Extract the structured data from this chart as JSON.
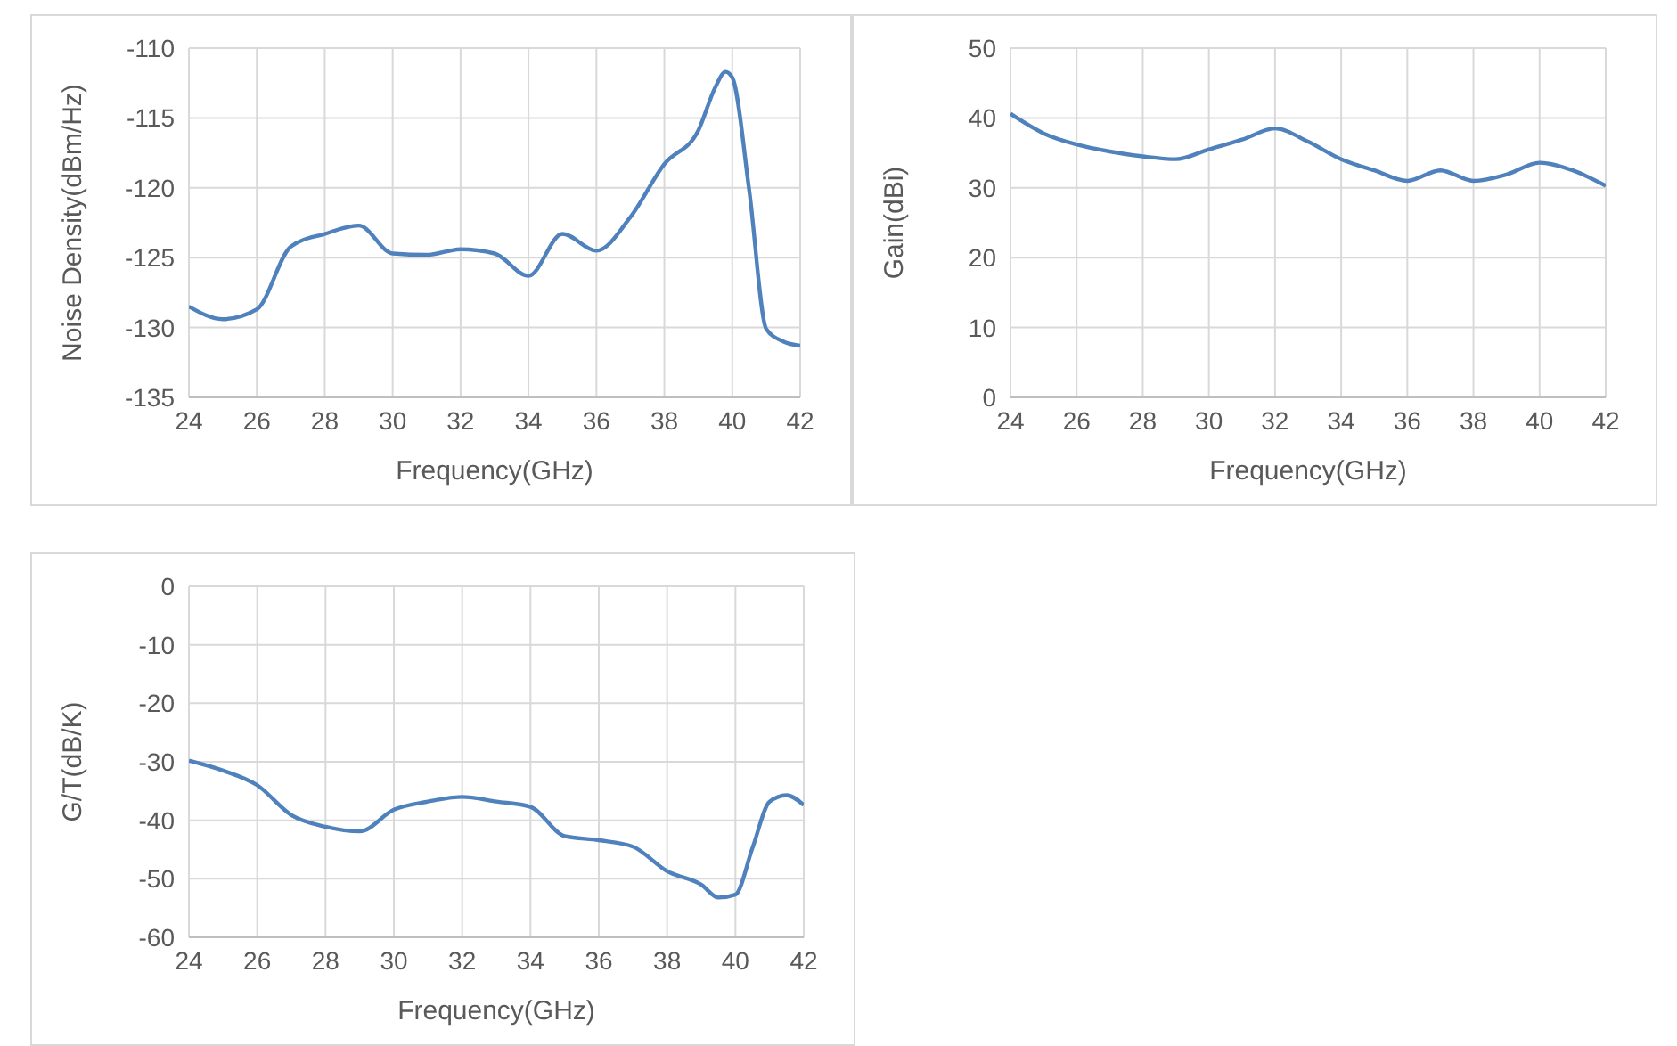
{
  "chart_data": [
    {
      "type": "line",
      "xlabel": "Frequency(GHz)",
      "ylabel": "Noise Density(dBm/Hz)",
      "x": [
        24,
        25,
        26,
        27,
        28,
        29,
        30,
        31,
        32,
        33,
        34,
        35,
        36,
        37,
        38,
        39,
        39.5,
        39.8,
        40,
        40.5,
        41,
        41.5,
        42
      ],
      "series": [
        {
          "color": "#4f81bd",
          "values": [
            -128.5,
            -129.4,
            -128.7,
            -124.2,
            -123.3,
            -122.7,
            -124.7,
            -124.8,
            -124.4,
            -124.7,
            -126.3,
            -123.3,
            -124.5,
            -122.1,
            -118.3,
            -115.9,
            -112.8,
            -111.7,
            -112.1,
            -120.2,
            -130.1,
            -131.0,
            -131.3
          ]
        }
      ],
      "xlim": [
        24,
        42
      ],
      "xticks": [
        24,
        26,
        28,
        30,
        32,
        34,
        36,
        38,
        40,
        42
      ],
      "ylim": [
        -135,
        -110
      ],
      "yticks": [
        -135,
        -130,
        -125,
        -120,
        -115,
        -110
      ],
      "grid": true
    },
    {
      "type": "line",
      "xlabel": "Frequency(GHz)",
      "ylabel": "Gain(dBi)",
      "x": [
        24,
        25,
        26,
        27,
        28,
        29,
        30,
        31,
        32,
        33,
        34,
        35,
        36,
        37,
        38,
        39,
        40,
        41,
        42
      ],
      "series": [
        {
          "color": "#4f81bd",
          "values": [
            40.6,
            37.8,
            36.2,
            35.2,
            34.5,
            34.1,
            35.5,
            36.9,
            38.5,
            36.6,
            34.1,
            32.5,
            31.0,
            32.5,
            31.0,
            31.9,
            33.6,
            32.5,
            30.3
          ]
        }
      ],
      "xlim": [
        24,
        42
      ],
      "xticks": [
        24,
        26,
        28,
        30,
        32,
        34,
        36,
        38,
        40,
        42
      ],
      "ylim": [
        0,
        50
      ],
      "yticks": [
        0,
        10,
        20,
        30,
        40,
        50
      ],
      "grid": true
    },
    {
      "type": "line",
      "xlabel": "Frequency(GHz)",
      "ylabel": "G/T(dB/K)",
      "x": [
        24,
        25,
        26,
        27,
        28,
        29,
        30,
        31,
        32,
        33,
        34,
        35,
        36,
        37,
        38,
        39,
        39.5,
        40,
        40.5,
        41,
        41.5,
        42
      ],
      "series": [
        {
          "color": "#4f81bd",
          "values": [
            -29.8,
            -31.5,
            -34.0,
            -39.1,
            -41.1,
            -41.9,
            -38.2,
            -36.8,
            -36.0,
            -36.8,
            -37.7,
            -42.7,
            -43.4,
            -44.5,
            -48.7,
            -51.0,
            -53.2,
            -52.7,
            -44.7,
            -36.8,
            -35.7,
            -37.4
          ]
        }
      ],
      "xlim": [
        24,
        42
      ],
      "xticks": [
        24,
        26,
        28,
        30,
        32,
        34,
        36,
        38,
        40,
        42
      ],
      "ylim": [
        -60,
        0
      ],
      "yticks": [
        -60,
        -50,
        -40,
        -30,
        -20,
        -10,
        0
      ],
      "grid": true
    }
  ]
}
